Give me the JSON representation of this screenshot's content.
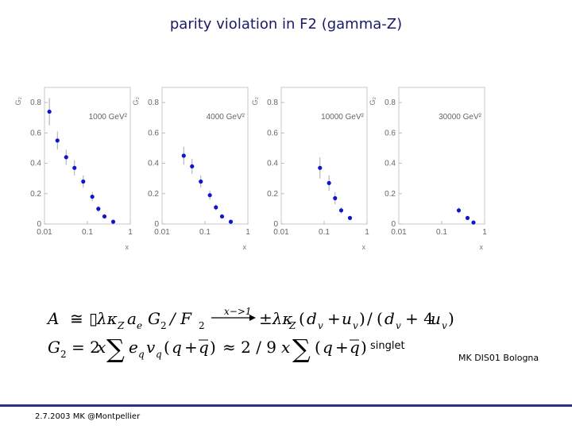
{
  "title": "parity violation in F2 (gamma-Z)",
  "chart_data": {
    "type": "scatter",
    "panels": [
      {
        "q2_label": "1000 GeV²",
        "ylabel": "G₂",
        "xlabel": "x",
        "xscale": "log",
        "xlim": [
          0.01,
          1
        ],
        "ylim": [
          0,
          0.9
        ],
        "xticks": [
          "0.01",
          "0.1",
          "1"
        ],
        "yticks": [
          "0",
          "0.2",
          "0.4",
          "0.6",
          "0.8"
        ],
        "points": [
          {
            "x": 0.013,
            "y": 0.74,
            "err": 0.09
          },
          {
            "x": 0.02,
            "y": 0.55,
            "err": 0.06
          },
          {
            "x": 0.032,
            "y": 0.44,
            "err": 0.05
          },
          {
            "x": 0.05,
            "y": 0.37,
            "err": 0.05
          },
          {
            "x": 0.08,
            "y": 0.28,
            "err": 0.04
          },
          {
            "x": 0.13,
            "y": 0.18,
            "err": 0.03
          },
          {
            "x": 0.18,
            "y": 0.1,
            "err": 0.02
          },
          {
            "x": 0.25,
            "y": 0.05,
            "err": 0.015
          },
          {
            "x": 0.4,
            "y": 0.015,
            "err": 0.005
          }
        ]
      },
      {
        "q2_label": "4000 GeV²",
        "ylabel": "G₂",
        "xlabel": "x",
        "xscale": "log",
        "xlim": [
          0.01,
          1
        ],
        "ylim": [
          0,
          0.9
        ],
        "xticks": [
          "0.01",
          "0.1",
          "1"
        ],
        "yticks": [
          "0",
          "0.2",
          "0.4",
          "0.6",
          "0.8"
        ],
        "points": [
          {
            "x": 0.032,
            "y": 0.45,
            "err": 0.06
          },
          {
            "x": 0.05,
            "y": 0.38,
            "err": 0.05
          },
          {
            "x": 0.08,
            "y": 0.28,
            "err": 0.04
          },
          {
            "x": 0.13,
            "y": 0.19,
            "err": 0.03
          },
          {
            "x": 0.18,
            "y": 0.11,
            "err": 0.02
          },
          {
            "x": 0.25,
            "y": 0.05,
            "err": 0.015
          },
          {
            "x": 0.4,
            "y": 0.015,
            "err": 0.005
          }
        ]
      },
      {
        "q2_label": "10000 GeV²",
        "ylabel": "G₂",
        "xlabel": "x",
        "xscale": "log",
        "xlim": [
          0.01,
          1
        ],
        "ylim": [
          0,
          0.9
        ],
        "xticks": [
          "0.01",
          "0.1",
          "1"
        ],
        "yticks": [
          "0",
          "0.2",
          "0.4",
          "0.6",
          "0.8"
        ],
        "points": [
          {
            "x": 0.08,
            "y": 0.37,
            "err": 0.07
          },
          {
            "x": 0.13,
            "y": 0.27,
            "err": 0.05
          },
          {
            "x": 0.18,
            "y": 0.17,
            "err": 0.04
          },
          {
            "x": 0.25,
            "y": 0.09,
            "err": 0.02
          },
          {
            "x": 0.4,
            "y": 0.04,
            "err": 0.01
          }
        ]
      },
      {
        "q2_label": "30000 GeV²",
        "ylabel": "G₂",
        "xlabel": "x",
        "xscale": "log",
        "xlim": [
          0.01,
          1
        ],
        "ylim": [
          0,
          0.9
        ],
        "xticks": [
          "0.01",
          "0.1",
          "1"
        ],
        "yticks": [
          "0",
          "0.2",
          "0.4",
          "0.6",
          "0.8"
        ],
        "points": [
          {
            "x": 0.25,
            "y": 0.09,
            "err": 0.02
          },
          {
            "x": 0.4,
            "y": 0.04,
            "err": 0.01
          },
          {
            "x": 0.55,
            "y": 0.01,
            "err": 0.005
          }
        ]
      }
    ],
    "marker_color": "#1414c8",
    "error_color": "#a8a8b4"
  },
  "formula": {
    "line1": {
      "lhs": "A",
      "approx": "≅",
      "box": "▯",
      "lam": "λκ",
      "Z": "Z",
      "a": "a",
      "e": "e",
      "G": "G",
      "two": "2",
      "slashF": "/ F",
      "arrow_label": "x−>1",
      "pm": "±λκ",
      "open": "(",
      "d": "d",
      "v": "v",
      "plus": "+",
      "u": "u",
      "close": ")",
      "slash": "/",
      "open2": "(",
      "plus4": "+ 4",
      "close2": ")"
    },
    "line2": {
      "G": "G",
      "two": "2",
      "eq": "= 2",
      "x": "x",
      "sum": "∑",
      "e": "e",
      "q": "q",
      "v": "v",
      "open": "(",
      "qq": "q",
      "plus": "+",
      "qbar": "q",
      "close": ")",
      "approx": "≈ 2 / 9",
      "x2": "x",
      "sum2": "∑",
      "open2": "(",
      "q2": "q",
      "plus2": "+",
      "qbar2": "q",
      "close2": ")"
    }
  },
  "singlet": "singlet",
  "credit": "MK DIS01 Bologna",
  "footer_date": "2.7.2003 MK @Montpellier"
}
